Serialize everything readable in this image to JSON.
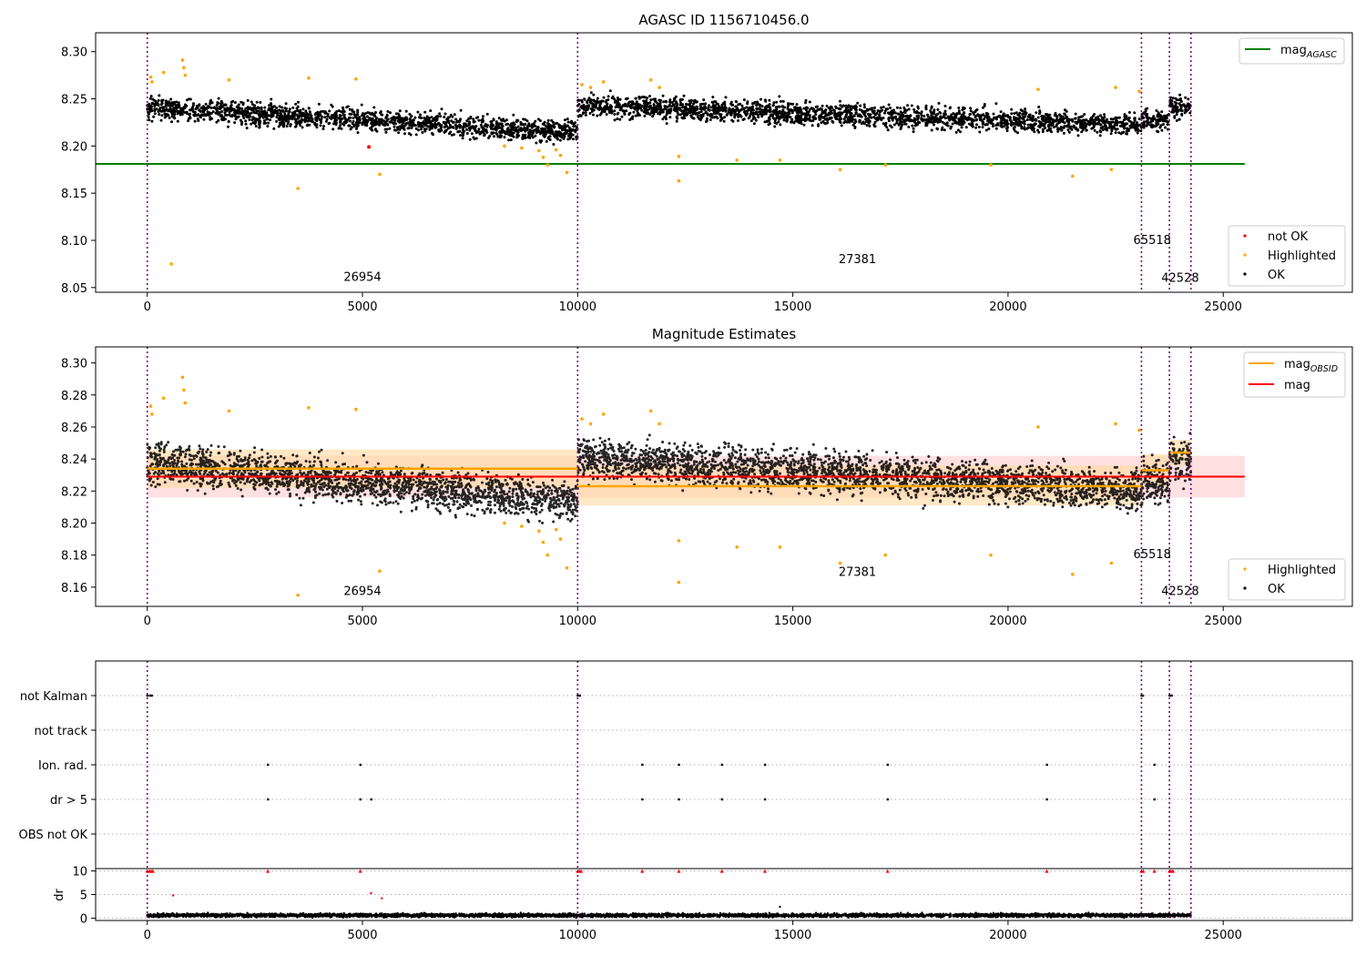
{
  "colors": {
    "ok": "#000000",
    "highlighted": "#ffa500",
    "not_ok": "#ff0000",
    "agasc_line": "#008000",
    "mag_line": "#ff0000",
    "obsid_line": "#ffa500",
    "obs_boundary": "#800080",
    "band_red": "#ffcccc",
    "band_orange": "#ffd8a0"
  },
  "chart_data": [
    {
      "type": "scatter",
      "title": "AGASC ID 1156710456.0",
      "xlim": [
        -1200,
        28000
      ],
      "ylim": [
        8.045,
        8.32
      ],
      "xticks": [
        0,
        5000,
        10000,
        15000,
        20000,
        25000
      ],
      "yticks": [
        8.05,
        8.1,
        8.15,
        8.2,
        8.25,
        8.3
      ],
      "ytick_labels": [
        "8.05",
        "8.10",
        "8.15",
        "8.20",
        "8.25",
        "8.30"
      ],
      "legend_top": {
        "position": "top-right",
        "entries": [
          {
            "label": "mag",
            "subscript": "AGASC",
            "color": "#008000"
          }
        ]
      },
      "legend_bottom": {
        "position": "bottom-right",
        "entries": [
          "not OK",
          "Highlighted",
          "OK"
        ]
      },
      "agasc_mag": 8.181,
      "ok_segments": [
        {
          "x0": 0,
          "x1": 10000,
          "start": 8.24,
          "end": 8.215
        },
        {
          "x0": 10000,
          "x1": 23100,
          "start": 8.243,
          "end": 8.222
        },
        {
          "x0": 23100,
          "x1": 23750,
          "start": 8.228,
          "end": 8.226
        },
        {
          "x0": 23750,
          "x1": 24250,
          "start": 8.242,
          "end": 8.24
        }
      ],
      "highlighted_points": [
        [
          80,
          8.273
        ],
        [
          110,
          8.268
        ],
        [
          380,
          8.278
        ],
        [
          560,
          8.075
        ],
        [
          820,
          8.291
        ],
        [
          850,
          8.283
        ],
        [
          880,
          8.275
        ],
        [
          1900,
          8.27
        ],
        [
          3500,
          8.155
        ],
        [
          3750,
          8.272
        ],
        [
          4850,
          8.271
        ],
        [
          5400,
          8.17
        ],
        [
          8300,
          8.2
        ],
        [
          8700,
          8.198
        ],
        [
          9100,
          8.195
        ],
        [
          9200,
          8.188
        ],
        [
          9300,
          8.18
        ],
        [
          9500,
          8.196
        ],
        [
          9600,
          8.19
        ],
        [
          9750,
          8.172
        ],
        [
          10100,
          8.265
        ],
        [
          10300,
          8.262
        ],
        [
          10600,
          8.268
        ],
        [
          11700,
          8.27
        ],
        [
          11900,
          8.262
        ],
        [
          12350,
          8.189
        ],
        [
          12350,
          8.163
        ],
        [
          13700,
          8.185
        ],
        [
          14700,
          8.185
        ],
        [
          16100,
          8.175
        ],
        [
          17150,
          8.18
        ],
        [
          19600,
          8.18
        ],
        [
          20700,
          8.26
        ],
        [
          21500,
          8.168
        ],
        [
          22400,
          8.175
        ],
        [
          22500,
          8.262
        ],
        [
          23050,
          8.258
        ]
      ],
      "not_ok_points": [
        [
          5150,
          8.199
        ]
      ],
      "obsid_boundaries": [
        0,
        10000,
        23100,
        23750,
        24250
      ],
      "obsid_labels": [
        {
          "text": "26954",
          "x": 5000,
          "y": 8.057
        },
        {
          "text": "27381",
          "x": 16500,
          "y": 8.076
        },
        {
          "text": "65518",
          "x": 23350,
          "y": 8.096
        },
        {
          "text": "42528",
          "x": 24000,
          "y": 8.056
        }
      ]
    },
    {
      "type": "scatter",
      "title": "Magnitude Estimates",
      "xlim": [
        -1200,
        28000
      ],
      "ylim": [
        8.148,
        8.31
      ],
      "xticks": [
        0,
        5000,
        10000,
        15000,
        20000,
        25000
      ],
      "yticks": [
        8.16,
        8.18,
        8.2,
        8.22,
        8.24,
        8.26,
        8.28,
        8.3
      ],
      "ytick_labels": [
        "8.16",
        "8.18",
        "8.20",
        "8.22",
        "8.24",
        "8.26",
        "8.28",
        "8.30"
      ],
      "legend_top": {
        "position": "top-right",
        "entries": [
          {
            "label": "mag",
            "subscript": "OBSID",
            "color": "#ffa500"
          },
          {
            "label": "mag",
            "subscript": "",
            "color": "#ff0000"
          }
        ]
      },
      "legend_bottom": {
        "position": "bottom-right",
        "entries": [
          "Highlighted",
          "OK"
        ]
      },
      "mag": 8.229,
      "mag_band": [
        8.216,
        8.242
      ],
      "obsid_mags": [
        {
          "x0": 0,
          "x1": 10000,
          "mag": 8.234,
          "band": [
            8.222,
            8.246
          ]
        },
        {
          "x0": 10000,
          "x1": 23100,
          "mag": 8.223,
          "band": [
            8.211,
            8.236
          ]
        },
        {
          "x0": 23100,
          "x1": 23750,
          "mag": 8.233,
          "band": [
            8.223,
            8.243
          ]
        },
        {
          "x0": 23750,
          "x1": 24250,
          "mag": 8.244,
          "band": [
            8.236,
            8.252
          ]
        }
      ],
      "obsid_labels": [
        {
          "text": "26954",
          "x": 5000,
          "y": 8.155
        },
        {
          "text": "27381",
          "x": 16500,
          "y": 8.167
        },
        {
          "text": "65518",
          "x": 23350,
          "y": 8.178
        },
        {
          "text": "42528",
          "x": 24000,
          "y": 8.155
        }
      ]
    },
    {
      "type": "scatter",
      "flags": [
        "not Kalman",
        "not track",
        "Ion. rad.",
        "dr > 5",
        "OBS not OK"
      ],
      "flag_points": {
        "not Kalman": [
          0,
          60,
          100,
          10000,
          10050,
          23100,
          23130,
          23750,
          23800
        ],
        "not track": [],
        "Ion. rad.": [
          2800,
          4950,
          11500,
          12350,
          13350,
          14350,
          17200,
          20900,
          23400
        ],
        "dr > 5": [
          2800,
          4950,
          5200,
          11500,
          12350,
          13350,
          14350,
          17200,
          20900,
          23400
        ],
        "OBS not OK": []
      },
      "dr": {
        "ylabel": "dr",
        "ylim": [
          -0.5,
          10.5
        ],
        "yticks": [
          0,
          5,
          10
        ],
        "ytick_labels": [
          "0",
          "5",
          "10"
        ],
        "xticks": [
          0,
          5000,
          10000,
          15000,
          20000,
          25000
        ],
        "xlim": [
          -1200,
          28000
        ],
        "clipped_points": [
          0,
          50,
          90,
          130,
          2800,
          4950,
          10000,
          10040,
          10080,
          11500,
          12350,
          13350,
          14350,
          17200,
          20900,
          23100,
          23140,
          23400,
          23750,
          23790,
          23830
        ],
        "outliers": [
          [
            600,
            4.8
          ],
          [
            5200,
            5.3
          ],
          [
            5450,
            4.2
          ],
          [
            14700,
            2.4
          ]
        ],
        "typical": 0.6
      }
    }
  ]
}
